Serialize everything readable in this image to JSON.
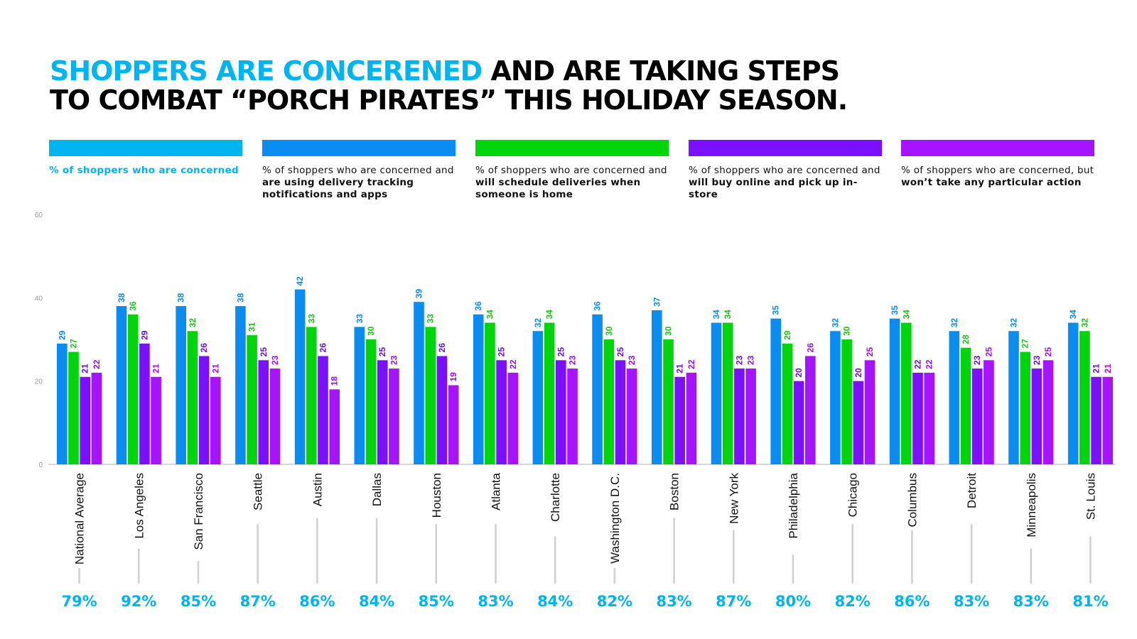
{
  "title": {
    "highlight": "SHOPPERS ARE CONCERENED",
    "line1_rest": " AND ARE TAKING STEPS",
    "line2": "TO COMBAT “PORCH PIRATES” THIS HOLIDAY SEASON."
  },
  "legend": [
    {
      "color": "#00b4f0",
      "text_plain": "",
      "text_bold": "% of shoppers who are concerned",
      "text_after": "",
      "text_color": "#00b4f0"
    },
    {
      "color": "#0a8cf0",
      "text_plain": "% of shoppers who are concerned and ",
      "text_bold": "are using delivery tracking notifications and apps",
      "text_after": "",
      "text_color": "#111111"
    },
    {
      "color": "#00d40a",
      "text_plain": "% of shoppers who are concerned and ",
      "text_bold": "will schedule deliveries when someone is home",
      "text_after": "",
      "text_color": "#111111"
    },
    {
      "color": "#7a10ff",
      "text_plain": "% of shoppers who are concerned and ",
      "text_bold": "will buy online and pick up in-store",
      "text_after": "",
      "text_color": "#111111"
    },
    {
      "color": "#a614ff",
      "text_plain": "% of shoppers who are concerned, but ",
      "text_bold": "won’t take any particular  action",
      "text_after": "",
      "text_color": "#111111"
    }
  ],
  "chart_data": {
    "type": "bar",
    "ylim": [
      0,
      60
    ],
    "yticks": [
      "0",
      "20",
      "40",
      "60"
    ],
    "categories": [
      "National Average",
      "Los Angeles",
      "San Francisco",
      "Seattle",
      "Austin",
      "Dallas",
      "Houston",
      "Atlanta",
      "Charlotte",
      "Washington D.C.",
      "Boston",
      "New York",
      "Philadelphia",
      "Chicago",
      "Columbus",
      "Detroit",
      "Minneapolis",
      "St. Louis"
    ],
    "concerned": [
      "79%",
      "92%",
      "85%",
      "87%",
      "86%",
      "84%",
      "85%",
      "83%",
      "84%",
      "82%",
      "83%",
      "87%",
      "80%",
      "82%",
      "86%",
      "83%",
      "83%",
      "81%"
    ],
    "series": [
      {
        "color": "#0a8cf0",
        "label_color": "#0a8cf0",
        "values": [
          29,
          38,
          38,
          38,
          42,
          33,
          39,
          36,
          32,
          36,
          37,
          34,
          35,
          32,
          35,
          32,
          32,
          34
        ]
      },
      {
        "color": "#00d40a",
        "label_color": "#1fc21a",
        "values": [
          27,
          36,
          32,
          31,
          33,
          30,
          33,
          34,
          34,
          30,
          30,
          34,
          29,
          30,
          34,
          28,
          27,
          32
        ]
      },
      {
        "color": "#7a10ff",
        "label_color": "#6a0fe0",
        "values": [
          21,
          29,
          26,
          25,
          26,
          25,
          26,
          25,
          25,
          25,
          21,
          23,
          20,
          20,
          22,
          23,
          23,
          21
        ]
      },
      {
        "color": "#a614ff",
        "label_color": "#9a10ef",
        "values": [
          22,
          21,
          21,
          23,
          18,
          23,
          19,
          22,
          23,
          23,
          22,
          23,
          26,
          25,
          22,
          25,
          25,
          21
        ]
      }
    ],
    "concerned_color": "#00b4f0"
  }
}
